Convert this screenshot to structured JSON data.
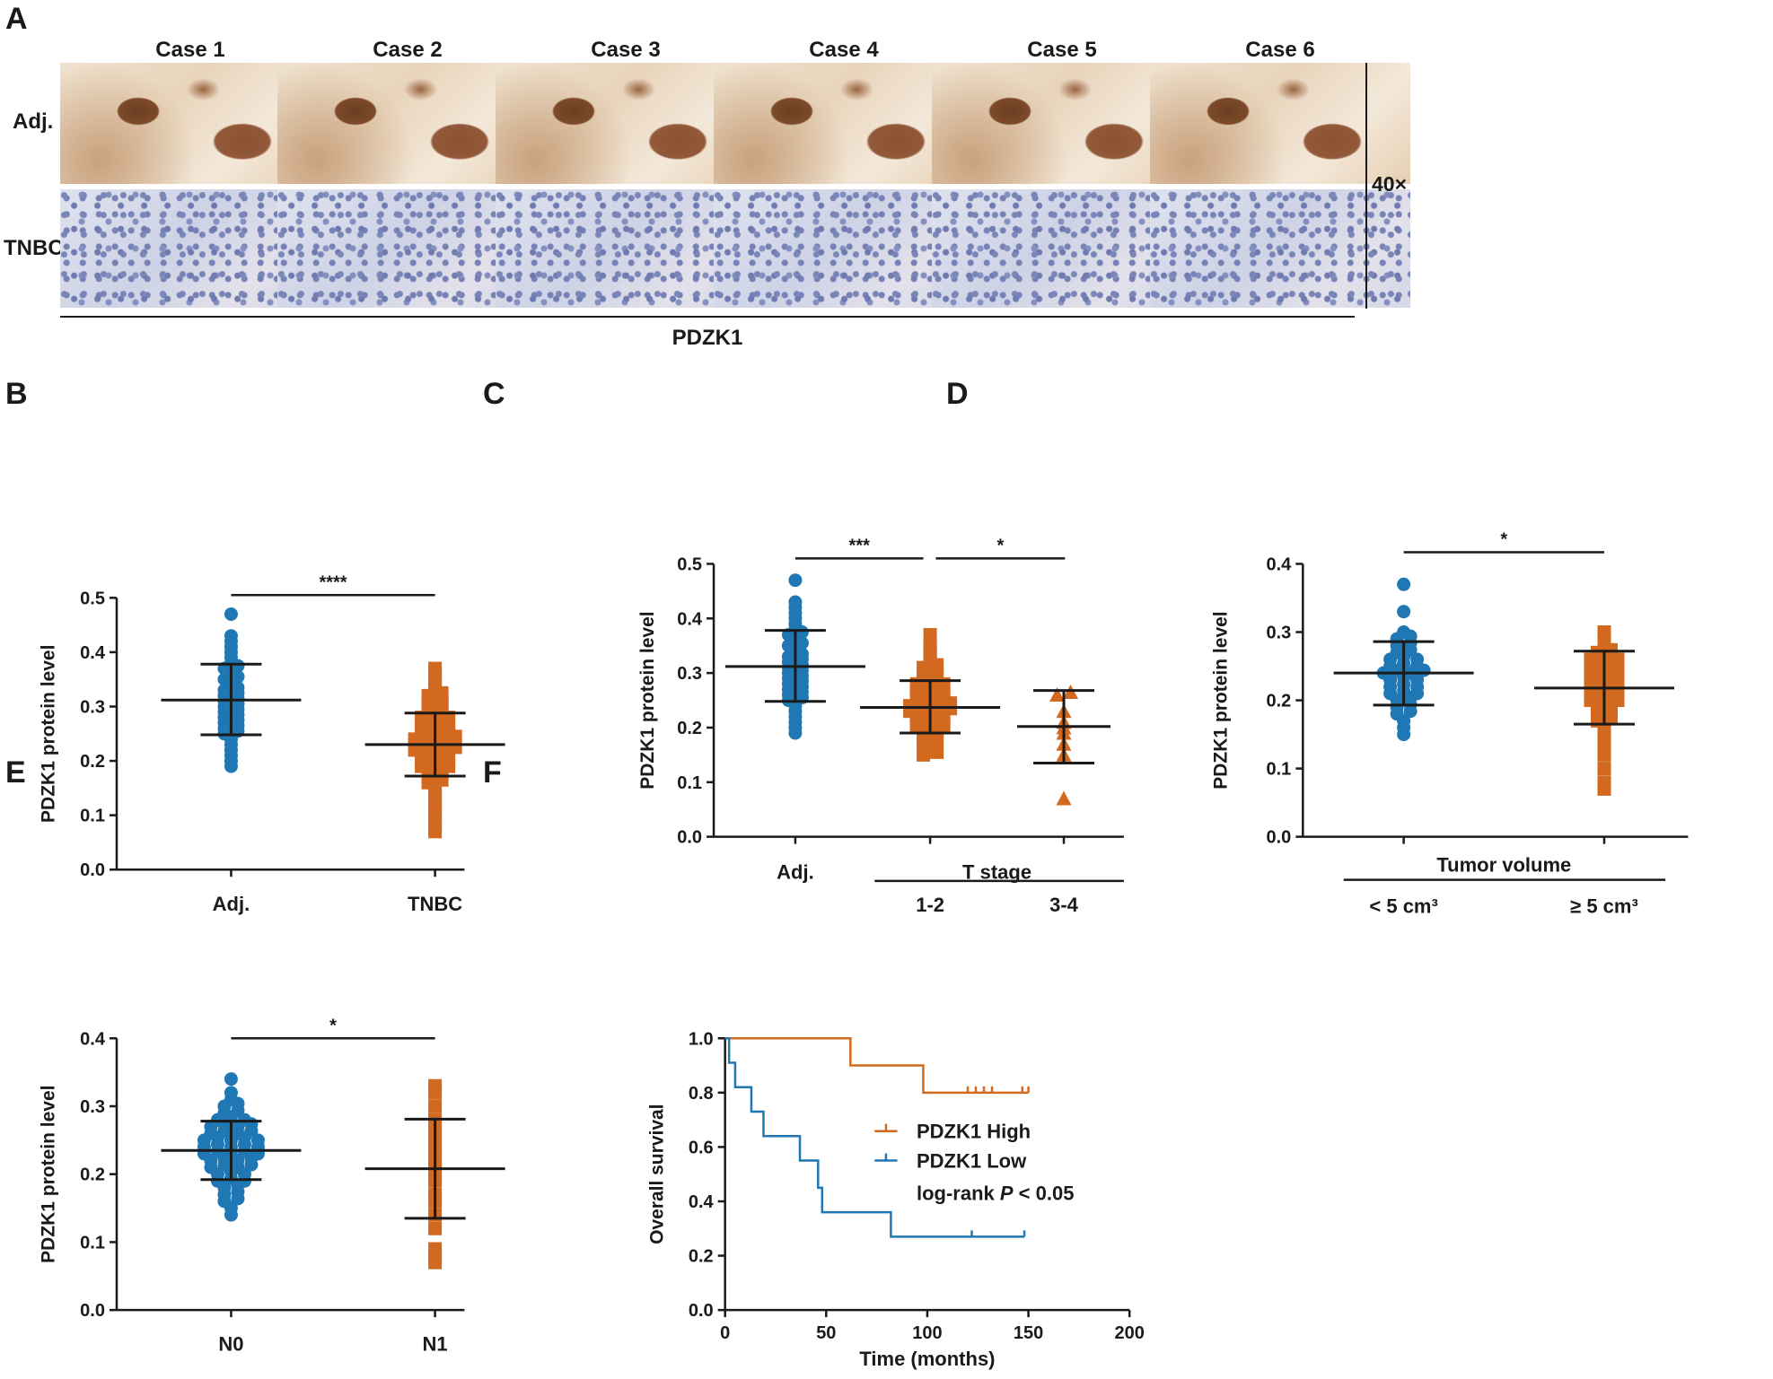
{
  "panel_labels": {
    "A": "A",
    "B": "B",
    "C": "C",
    "D": "D",
    "E": "E",
    "F": "F"
  },
  "panel_a": {
    "cases": [
      "Case 1",
      "Case 2",
      "Case 3",
      "Case 4",
      "Case 5",
      "Case 6"
    ],
    "row_labels": [
      "Adj.",
      "TNBC"
    ],
    "magnification": "40×",
    "marker": "PDZK1"
  },
  "colors": {
    "blue": "#1f77b4",
    "orange": "#d2691e",
    "axis": "#1a1a1a"
  },
  "chart_data": [
    {
      "panel": "B",
      "type": "scatter",
      "ylabel": "PDZK1 protein level",
      "ylim": [
        0,
        0.5
      ],
      "yticks": [
        "0.0",
        "0.1",
        "0.2",
        "0.3",
        "0.4",
        "0.5"
      ],
      "groups": [
        {
          "label": "Adj.",
          "color": "blue",
          "shape": "circle",
          "mean": 0.312,
          "sd_low": 0.248,
          "sd_high": 0.378,
          "values": [
            0.47,
            0.43,
            0.42,
            0.41,
            0.4,
            0.39,
            0.38,
            0.37,
            0.37,
            0.36,
            0.35,
            0.35,
            0.34,
            0.33,
            0.33,
            0.32,
            0.32,
            0.31,
            0.31,
            0.3,
            0.3,
            0.29,
            0.29,
            0.28,
            0.28,
            0.27,
            0.27,
            0.26,
            0.26,
            0.25,
            0.25,
            0.24,
            0.23,
            0.22,
            0.21,
            0.2,
            0.19
          ]
        },
        {
          "label": "TNBC",
          "color": "orange",
          "shape": "square",
          "mean": 0.23,
          "sd_low": 0.172,
          "sd_high": 0.288,
          "values": [
            0.37,
            0.36,
            0.35,
            0.34,
            0.33,
            0.32,
            0.32,
            0.31,
            0.31,
            0.3,
            0.3,
            0.29,
            0.29,
            0.28,
            0.28,
            0.28,
            0.27,
            0.27,
            0.27,
            0.26,
            0.26,
            0.26,
            0.25,
            0.25,
            0.25,
            0.24,
            0.24,
            0.24,
            0.24,
            0.23,
            0.23,
            0.23,
            0.23,
            0.22,
            0.22,
            0.22,
            0.22,
            0.21,
            0.21,
            0.21,
            0.2,
            0.2,
            0.2,
            0.19,
            0.19,
            0.19,
            0.18,
            0.18,
            0.17,
            0.17,
            0.16,
            0.16,
            0.15,
            0.14,
            0.13,
            0.12,
            0.11,
            0.1,
            0.09,
            0.08,
            0.07
          ]
        }
      ],
      "sig": [
        {
          "text": "****",
          "from": 0,
          "to": 1,
          "y": 0.505
        }
      ]
    },
    {
      "panel": "C",
      "type": "scatter",
      "ylabel": "PDZK1 protein level",
      "ylim": [
        0,
        0.5
      ],
      "yticks": [
        "0.0",
        "0.1",
        "0.2",
        "0.3",
        "0.4",
        "0.5"
      ],
      "group_label": "T stage",
      "groups": [
        {
          "label": "Adj.",
          "color": "blue",
          "shape": "circle",
          "mean": 0.312,
          "sd_low": 0.248,
          "sd_high": 0.378,
          "values": [
            0.47,
            0.43,
            0.42,
            0.41,
            0.4,
            0.39,
            0.38,
            0.37,
            0.37,
            0.36,
            0.35,
            0.35,
            0.34,
            0.33,
            0.33,
            0.32,
            0.32,
            0.31,
            0.31,
            0.3,
            0.3,
            0.29,
            0.29,
            0.28,
            0.28,
            0.27,
            0.27,
            0.26,
            0.26,
            0.25,
            0.25,
            0.24,
            0.23,
            0.22,
            0.21,
            0.2,
            0.19
          ]
        },
        {
          "label": "1-2",
          "color": "orange",
          "shape": "square",
          "mean": 0.237,
          "sd_low": 0.19,
          "sd_high": 0.286,
          "values": [
            0.37,
            0.35,
            0.34,
            0.33,
            0.32,
            0.31,
            0.31,
            0.3,
            0.3,
            0.29,
            0.29,
            0.28,
            0.28,
            0.28,
            0.27,
            0.27,
            0.27,
            0.26,
            0.26,
            0.26,
            0.25,
            0.25,
            0.25,
            0.24,
            0.24,
            0.24,
            0.24,
            0.23,
            0.23,
            0.23,
            0.23,
            0.22,
            0.22,
            0.22,
            0.21,
            0.21,
            0.21,
            0.2,
            0.2,
            0.2,
            0.19,
            0.19,
            0.18,
            0.18,
            0.17,
            0.17,
            0.16,
            0.15,
            0.15
          ]
        },
        {
          "label": "3-4",
          "color": "orange",
          "shape": "triangle",
          "mean": 0.202,
          "sd_low": 0.135,
          "sd_high": 0.268,
          "values": [
            0.26,
            0.26,
            0.23,
            0.21,
            0.2,
            0.19,
            0.17,
            0.15,
            0.07
          ]
        }
      ],
      "sig": [
        {
          "text": "***",
          "from": 0,
          "to": 1,
          "y": 0.51
        },
        {
          "text": "*",
          "from": 1,
          "to": 2,
          "y": 0.51
        }
      ]
    },
    {
      "panel": "D",
      "type": "scatter",
      "ylabel": "PDZK1 protein level",
      "ylim": [
        0,
        0.4
      ],
      "yticks": [
        "0.0",
        "0.1",
        "0.2",
        "0.3",
        "0.4"
      ],
      "group_label": "Tumor volume",
      "groups": [
        {
          "label": "< 5 cm³",
          "color": "blue",
          "shape": "circle",
          "mean": 0.24,
          "sd_low": 0.193,
          "sd_high": 0.286,
          "values": [
            0.37,
            0.33,
            0.3,
            0.29,
            0.29,
            0.28,
            0.28,
            0.27,
            0.27,
            0.26,
            0.26,
            0.26,
            0.25,
            0.25,
            0.25,
            0.24,
            0.24,
            0.24,
            0.24,
            0.23,
            0.23,
            0.23,
            0.22,
            0.22,
            0.22,
            0.21,
            0.21,
            0.21,
            0.2,
            0.2,
            0.19,
            0.19,
            0.18,
            0.18,
            0.17,
            0.16,
            0.15
          ]
        },
        {
          "label": "≥ 5 cm³",
          "color": "orange",
          "shape": "square",
          "mean": 0.218,
          "sd_low": 0.165,
          "sd_high": 0.272,
          "values": [
            0.3,
            0.29,
            0.28,
            0.27,
            0.27,
            0.26,
            0.26,
            0.26,
            0.25,
            0.25,
            0.25,
            0.24,
            0.24,
            0.24,
            0.23,
            0.23,
            0.23,
            0.22,
            0.22,
            0.22,
            0.21,
            0.21,
            0.21,
            0.2,
            0.2,
            0.2,
            0.19,
            0.19,
            0.18,
            0.18,
            0.17,
            0.17,
            0.16,
            0.15,
            0.14,
            0.13,
            0.12,
            0.1,
            0.08,
            0.07
          ]
        }
      ],
      "sig": [
        {
          "text": "*",
          "from": 0,
          "to": 1,
          "y": 0.417
        }
      ]
    },
    {
      "panel": "E",
      "type": "scatter",
      "ylabel": "PDZK1 protein level",
      "ylim": [
        0,
        0.4
      ],
      "yticks": [
        "0.0",
        "0.1",
        "0.2",
        "0.3",
        "0.4"
      ],
      "groups": [
        {
          "label": "N0",
          "color": "blue",
          "shape": "circle",
          "mean": 0.235,
          "sd_low": 0.192,
          "sd_high": 0.278,
          "values": [
            0.34,
            0.32,
            0.31,
            0.3,
            0.3,
            0.29,
            0.29,
            0.28,
            0.28,
            0.28,
            0.27,
            0.27,
            0.27,
            0.27,
            0.26,
            0.26,
            0.26,
            0.26,
            0.25,
            0.25,
            0.25,
            0.25,
            0.25,
            0.24,
            0.24,
            0.24,
            0.24,
            0.24,
            0.23,
            0.23,
            0.23,
            0.23,
            0.23,
            0.22,
            0.22,
            0.22,
            0.22,
            0.21,
            0.21,
            0.21,
            0.21,
            0.2,
            0.2,
            0.2,
            0.19,
            0.19,
            0.19,
            0.18,
            0.18,
            0.17,
            0.17,
            0.16,
            0.16,
            0.15,
            0.14
          ]
        },
        {
          "label": "N1",
          "color": "orange",
          "shape": "square",
          "mean": 0.208,
          "sd_low": 0.135,
          "sd_high": 0.281,
          "values": [
            0.33,
            0.32,
            0.3,
            0.28,
            0.27,
            0.26,
            0.25,
            0.24,
            0.23,
            0.22,
            0.21,
            0.2,
            0.19,
            0.17,
            0.16,
            0.14,
            0.12,
            0.09,
            0.08,
            0.07
          ]
        }
      ],
      "sig": [
        {
          "text": "*",
          "from": 0,
          "to": 1,
          "y": 0.4
        }
      ]
    },
    {
      "panel": "F",
      "type": "line",
      "xlabel": "Time (months)",
      "ylabel": "Overall survival",
      "xlim": [
        0,
        200
      ],
      "ylim": [
        0,
        1.0
      ],
      "xticks": [
        "0",
        "50",
        "100",
        "150",
        "200"
      ],
      "yticks": [
        "0.0",
        "0.2",
        "0.4",
        "0.6",
        "0.8",
        "1.0"
      ],
      "series": [
        {
          "name": "PDZK1 High",
          "color": "orange",
          "steps": [
            [
              0,
              1.0
            ],
            [
              62,
              1.0
            ],
            [
              62,
              0.9
            ],
            [
              98,
              0.9
            ],
            [
              98,
              0.8
            ],
            [
              150,
              0.8
            ]
          ],
          "censored": [
            [
              120,
              0.8
            ],
            [
              124,
              0.8
            ],
            [
              128,
              0.8
            ],
            [
              132,
              0.8
            ],
            [
              147,
              0.8
            ],
            [
              150,
              0.8
            ]
          ]
        },
        {
          "name": "PDZK1 Low",
          "color": "blue",
          "steps": [
            [
              0,
              1.0
            ],
            [
              2,
              1.0
            ],
            [
              2,
              0.91
            ],
            [
              5,
              0.91
            ],
            [
              5,
              0.82
            ],
            [
              13,
              0.82
            ],
            [
              13,
              0.73
            ],
            [
              19,
              0.73
            ],
            [
              19,
              0.64
            ],
            [
              37,
              0.64
            ],
            [
              37,
              0.55
            ],
            [
              46,
              0.55
            ],
            [
              46,
              0.45
            ],
            [
              48,
              0.45
            ],
            [
              48,
              0.36
            ],
            [
              82,
              0.36
            ],
            [
              82,
              0.27
            ],
            [
              148,
              0.27
            ]
          ],
          "censored": [
            [
              122,
              0.27
            ],
            [
              148,
              0.27
            ]
          ]
        }
      ],
      "annotation_prefix": "log-rank ",
      "annotation_p": "P",
      "annotation_suffix": " < 0.05"
    }
  ]
}
